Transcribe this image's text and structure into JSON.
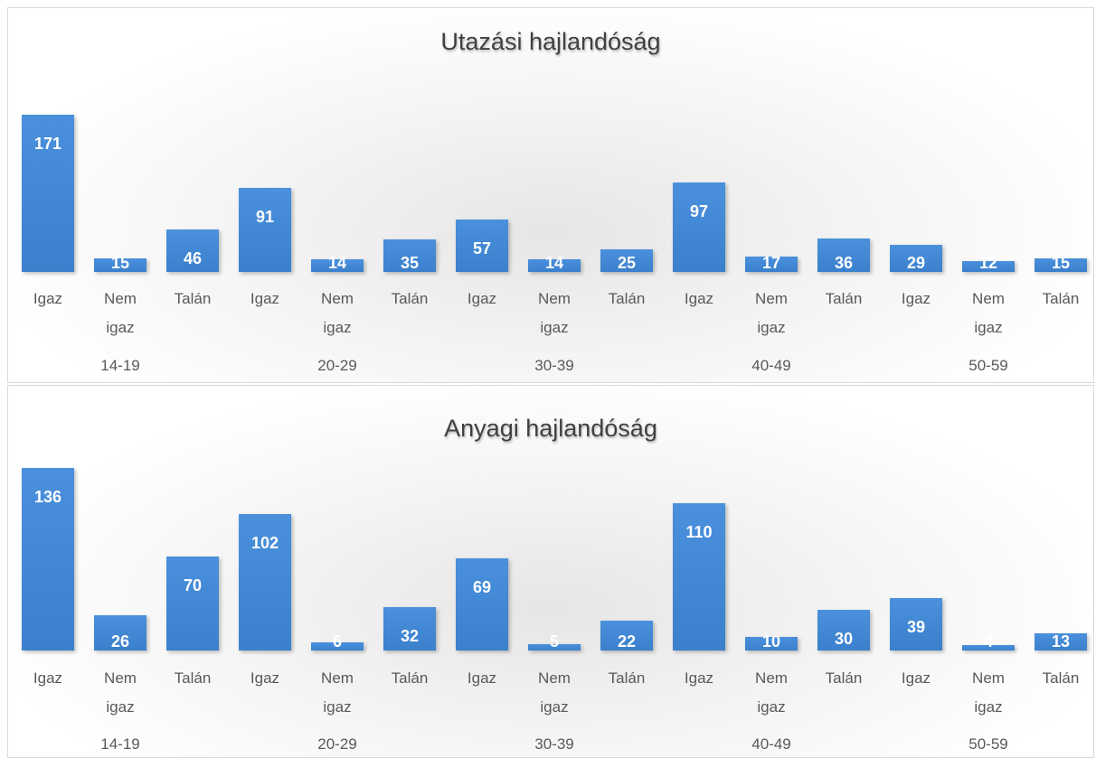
{
  "chart_data": [
    {
      "type": "bar",
      "title": "Utazási hajlandóság",
      "categories": [
        "Igaz",
        "Nem igaz",
        "Talán",
        "Igaz",
        "Nem igaz",
        "Talán",
        "Igaz",
        "Nem igaz",
        "Talán",
        "Igaz",
        "Nem igaz",
        "Talán",
        "Igaz",
        "Nem igaz",
        "Talán"
      ],
      "groups": [
        "14-19",
        "20-29",
        "30-39",
        "40-49",
        "50-59"
      ],
      "values": [
        171,
        15,
        46,
        91,
        14,
        35,
        57,
        14,
        25,
        97,
        17,
        36,
        29,
        12,
        15
      ],
      "color": "#3a80cc"
    },
    {
      "type": "bar",
      "title": "Anyagi hajlandóság",
      "categories": [
        "Igaz",
        "Nem igaz",
        "Talán",
        "Igaz",
        "Nem igaz",
        "Talán",
        "Igaz",
        "Nem igaz",
        "Talán",
        "Igaz",
        "Nem igaz",
        "Talán",
        "Igaz",
        "Nem igaz",
        "Talán"
      ],
      "groups": [
        "14-19",
        "20-29",
        "30-39",
        "40-49",
        "50-59"
      ],
      "values": [
        136,
        26,
        70,
        102,
        6,
        32,
        69,
        5,
        22,
        110,
        10,
        30,
        39,
        4,
        13
      ],
      "color": "#3a80cc"
    }
  ]
}
